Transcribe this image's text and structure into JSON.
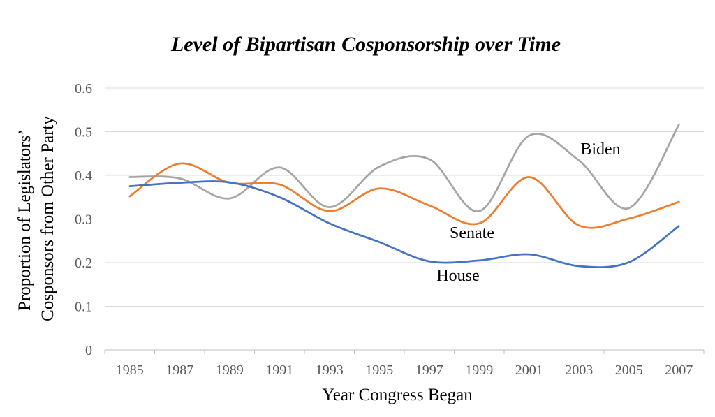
{
  "chart_data": {
    "type": "line",
    "title": "Level of Bipartisan Cosponsorship over Time",
    "xlabel": "Year Congress Began",
    "ylabel_lines": [
      "Proportion of Legislators’",
      "Cosponsors from Other Party"
    ],
    "x": [
      "1985",
      "1987",
      "1989",
      "1991",
      "1993",
      "1995",
      "1997",
      "1999",
      "2001",
      "2003",
      "2005",
      "2007"
    ],
    "yticks": [
      "0",
      "0.1",
      "0.2",
      "0.3",
      "0.4",
      "0.5",
      "0.6"
    ],
    "ylim": [
      0,
      0.6
    ],
    "grid": true,
    "legend": "none",
    "series": [
      {
        "name": "Biden",
        "color": "#a5a5a5",
        "values": [
          0.396,
          0.393,
          0.347,
          0.418,
          0.327,
          0.42,
          0.437,
          0.318,
          0.491,
          0.434,
          0.325,
          0.516
        ]
      },
      {
        "name": "Senate",
        "color": "#ed7d31",
        "values": [
          0.352,
          0.427,
          0.383,
          0.379,
          0.318,
          0.37,
          0.331,
          0.29,
          0.396,
          0.285,
          0.301,
          0.339
        ]
      },
      {
        "name": "House",
        "color": "#4472c4",
        "values": [
          0.375,
          0.383,
          0.384,
          0.35,
          0.29,
          0.247,
          0.203,
          0.205,
          0.219,
          0.192,
          0.201,
          0.284
        ]
      }
    ]
  }
}
